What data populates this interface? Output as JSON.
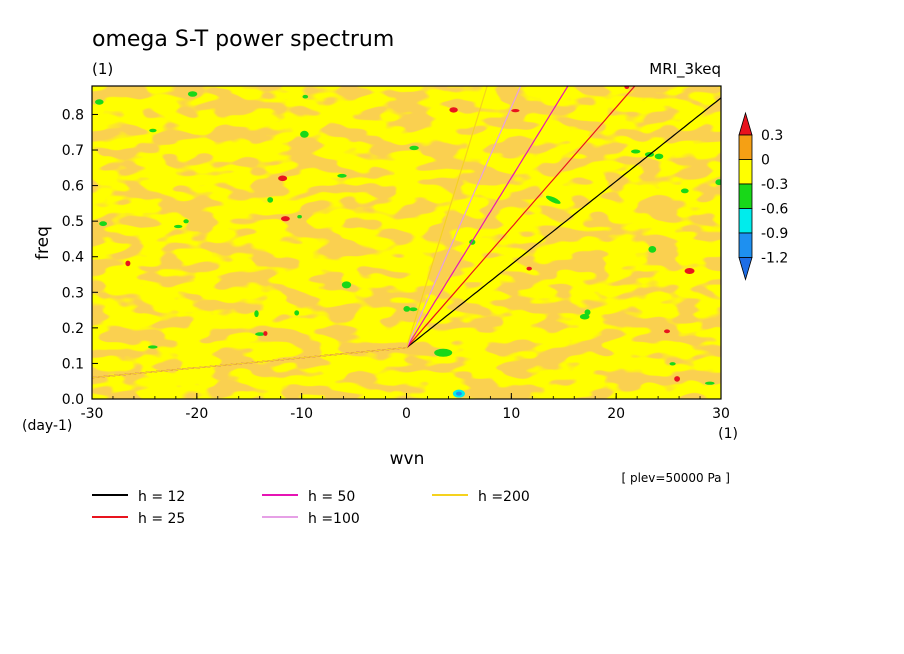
{
  "chart_data": {
    "type": "heatmap",
    "title": "omega S-T power spectrum",
    "subtitle_left": "(1)",
    "model": "MRI_3keq",
    "xlabel": "wvn",
    "ylabel": "freq",
    "x_units": "(1)",
    "y_units": "(day-1)",
    "xlim": [
      -30,
      30
    ],
    "ylim": [
      0,
      0.88
    ],
    "x_ticks": [
      -30,
      -20,
      -10,
      0,
      10,
      20,
      30
    ],
    "x_tick_labels": [
      "-30",
      "-20",
      "-10",
      "0",
      "10",
      "20",
      "30"
    ],
    "y_ticks": [
      0,
      0.1,
      0.2,
      0.3,
      0.4,
      0.5,
      0.6,
      0.7,
      0.8
    ],
    "y_tick_labels": [
      "0.0",
      "0.1",
      "0.2",
      "0.3",
      "0.4",
      "0.5",
      "0.6",
      "0.7",
      "0.8"
    ],
    "level_note": "[ plev=50000 Pa ]",
    "colorbar": {
      "levels": [
        0.3,
        0,
        -0.3,
        -0.6,
        -0.9,
        -1.2
      ],
      "labels": [
        "0.3",
        "0",
        "-0.3",
        "-0.6",
        "-0.9",
        "-1.2"
      ],
      "colors": [
        "#e8141e",
        "#f5a014",
        "#ffff00",
        "#18d818",
        "#00ecec",
        "#1e90f0",
        "#1e6ee6"
      ]
    },
    "field_colors": {
      "yellow": "#ffff00",
      "orange": "#f5a014",
      "green": "#18d818",
      "red": "#e8141e",
      "cyan": "#00ecec",
      "blue": "#1e90f0"
    },
    "dispersion_curves": [
      {
        "name": "h = 12",
        "h": 12,
        "color": "#000000"
      },
      {
        "name": "h = 25",
        "h": 25,
        "color": "#e8141e"
      },
      {
        "name": "h = 50",
        "h": 50,
        "color": "#e614b4"
      },
      {
        "name": "h =100",
        "h": 100,
        "color": "#e6a0e6"
      },
      {
        "name": "h =200",
        "h": 200,
        "color": "#f5d21e"
      }
    ]
  }
}
